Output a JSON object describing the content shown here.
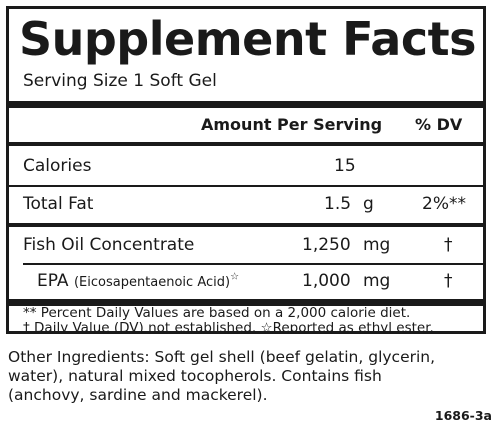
{
  "panel": {
    "title": "Supplement Facts",
    "serving_size": "Serving Size 1 Soft Gel",
    "header": {
      "amount": "Amount Per Serving",
      "dv": "% DV"
    },
    "rows": [
      {
        "name": "Calories",
        "amount": "15",
        "unit": "",
        "dv": ""
      },
      {
        "name": "Total Fat",
        "amount": "1.5",
        "unit": "g",
        "dv": "2%**"
      },
      {
        "name": "Fish Oil Concentrate",
        "amount": "1,250",
        "unit": "mg",
        "dv": "†"
      },
      {
        "name": "EPA",
        "name_sub": "(Eicosapentaenoic Acid)",
        "name_mark": "☆",
        "amount": "1,000",
        "unit": "mg",
        "dv": "†"
      }
    ],
    "footnotes": [
      "** Percent Daily Values are based on a 2,000 calorie diet.",
      "† Daily Value (DV) not established.  ☆Reported as ethyl ester."
    ]
  },
  "other_ingredients": {
    "lines": [
      "Other Ingredients: Soft gel shell (beef gelatin, glycerin,",
      "water), natural mixed tocopherols. Contains fish",
      "(anchovy, sardine and mackerel)."
    ]
  },
  "product_code": "1686-3a"
}
